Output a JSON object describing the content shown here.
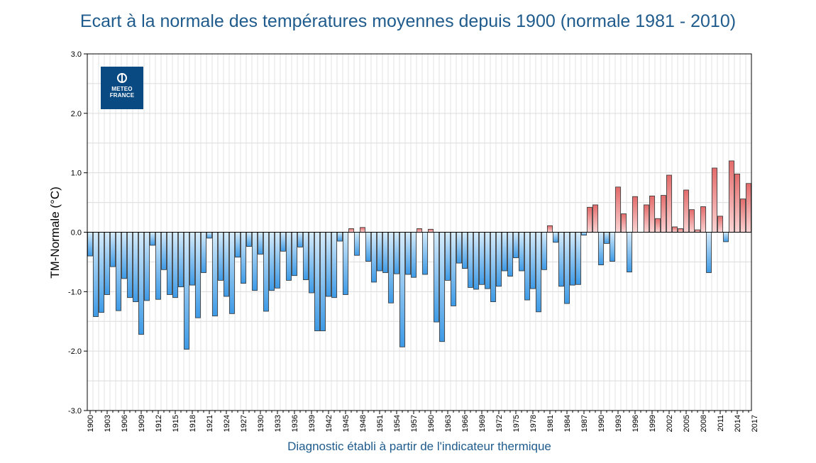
{
  "chart_data": {
    "type": "bar",
    "title": "Ecart à la normale des températures moyennes depuis 1900 (normale 1981 - 2010)",
    "xlabel": "Diagnostic établi à partir de l'indicateur thermique",
    "ylabel": "TM-Normale (°C)",
    "ylim": [
      -3.0,
      3.0
    ],
    "y_ticks": [
      "3.0",
      "2.0",
      "1.0",
      "0.0",
      "-1.0",
      "-2.0",
      "-3.0"
    ],
    "grid": true,
    "x_start": 1900,
    "x_tick_labels": [
      "1900",
      "1903",
      "1906",
      "1909",
      "1912",
      "1915",
      "1918",
      "1921",
      "1924",
      "1927",
      "1930",
      "1933",
      "1936",
      "1939",
      "1942",
      "1945",
      "1948",
      "1951",
      "1954",
      "1957",
      "1960",
      "1963",
      "1966",
      "1969",
      "1972",
      "1975",
      "1978",
      "1981",
      "1984",
      "1987",
      "1990",
      "1993",
      "1996",
      "1999",
      "2002",
      "2005",
      "2008",
      "2011",
      "2014",
      "2017"
    ],
    "colors": {
      "positive": "#e36b6b",
      "negative": "#3d9ae6",
      "positive_light": "#fcd4d4",
      "negative_light": "#d6ecfb"
    },
    "values": [
      -0.4,
      -1.42,
      -1.35,
      -1.05,
      -0.58,
      -1.32,
      -0.78,
      -1.1,
      -1.17,
      -1.72,
      -1.15,
      -0.22,
      -1.13,
      -0.63,
      -1.05,
      -1.1,
      -0.92,
      -1.97,
      -0.89,
      -1.44,
      -0.68,
      -0.1,
      -1.41,
      -0.81,
      -1.08,
      -1.37,
      -0.42,
      -0.86,
      -0.24,
      -0.98,
      -0.37,
      -1.33,
      -0.98,
      -0.94,
      -0.32,
      -0.81,
      -0.73,
      -0.25,
      -0.8,
      -1.02,
      -1.66,
      -1.66,
      -1.08,
      -1.1,
      -0.15,
      -1.05,
      0.06,
      -0.39,
      0.08,
      -0.49,
      -0.84,
      -0.65,
      -0.68,
      -1.19,
      -0.7,
      -1.93,
      -0.71,
      -0.76,
      0.06,
      -0.71,
      0.05,
      -1.51,
      -1.84,
      -0.81,
      -1.24,
      -0.52,
      -0.61,
      -0.93,
      -0.96,
      -0.88,
      -0.95,
      -1.17,
      -0.91,
      -0.65,
      -0.74,
      -0.43,
      -0.65,
      -1.14,
      -0.95,
      -1.34,
      -0.63,
      0.11,
      -0.17,
      -0.91,
      -1.2,
      -0.89,
      -0.88,
      -0.05,
      0.42,
      0.46,
      -0.55,
      -0.19,
      -0.49,
      0.76,
      0.31,
      -0.67,
      0.6,
      0.0,
      0.46,
      0.61,
      0.23,
      0.62,
      0.96,
      0.09,
      0.06,
      0.71,
      0.38,
      0.04,
      0.43,
      -0.68,
      1.08,
      0.27,
      -0.16,
      1.2,
      0.98,
      0.56,
      0.82
    ]
  },
  "logo": {
    "line1": "METEO",
    "line2": "FRANCE"
  }
}
